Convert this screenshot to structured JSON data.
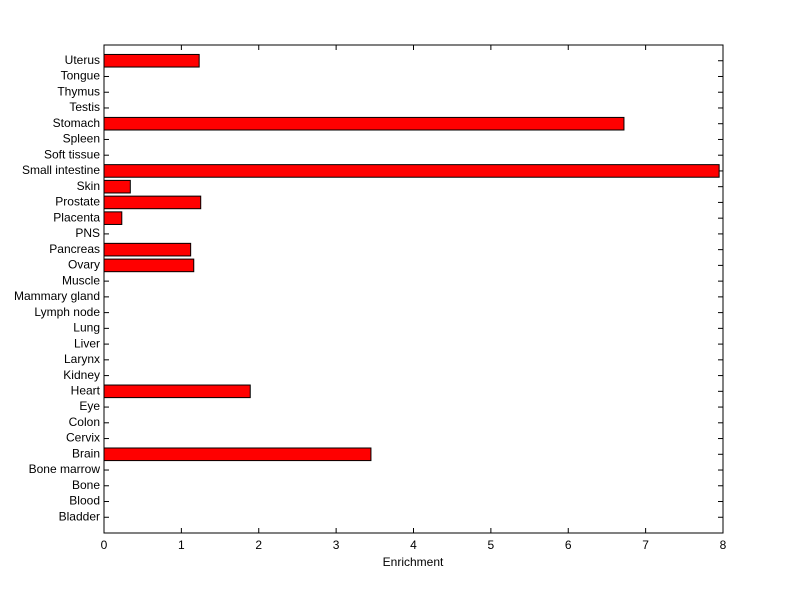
{
  "chart_data": {
    "type": "barh",
    "x_label": "Enrichment",
    "categories": [
      "Bladder",
      "Blood",
      "Bone",
      "Bone marrow",
      "Brain",
      "Cervix",
      "Colon",
      "Eye",
      "Heart",
      "Kidney",
      "Larynx",
      "Liver",
      "Lung",
      "Lymph node",
      "Mammary gland",
      "Muscle",
      "Ovary",
      "Pancreas",
      "PNS",
      "Placenta",
      "Prostate",
      "Skin",
      "Small intestine",
      "Soft tissue",
      "Spleen",
      "Stomach",
      "Testis",
      "Thymus",
      "Tongue",
      "Uterus"
    ],
    "values": [
      0,
      0,
      0,
      0,
      3.45,
      0,
      0,
      0,
      1.89,
      0,
      0,
      0,
      0,
      0,
      0,
      0,
      1.16,
      1.12,
      0,
      0.23,
      1.25,
      0.34,
      7.95,
      0,
      0,
      6.72,
      0,
      0,
      0,
      1.23
    ],
    "color": "#ff0000",
    "xlim": [
      0,
      8
    ],
    "xticks": [
      0,
      1,
      2,
      3,
      4,
      5,
      6,
      7,
      8
    ]
  }
}
